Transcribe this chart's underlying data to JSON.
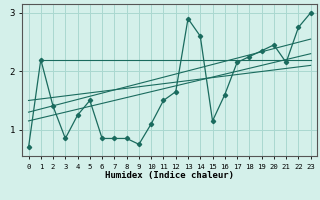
{
  "xlabel": "Humidex (Indice chaleur)",
  "bg_color": "#d4f0ea",
  "line_color": "#1a6b5e",
  "grid_color": "#aad8d0",
  "xlim": [
    -0.5,
    23.5
  ],
  "ylim": [
    0.55,
    3.15
  ],
  "yticks": [
    1,
    2,
    3
  ],
  "xticks": [
    0,
    1,
    2,
    3,
    4,
    5,
    6,
    7,
    8,
    9,
    10,
    11,
    12,
    13,
    14,
    15,
    16,
    17,
    18,
    19,
    20,
    21,
    22,
    23
  ],
  "curve_x": [
    0,
    1,
    2,
    3,
    4,
    5,
    6,
    7,
    8,
    9,
    10,
    11,
    12,
    13,
    14,
    15,
    16,
    17,
    18,
    19,
    20,
    21,
    22,
    23
  ],
  "curve_y": [
    0.7,
    2.2,
    1.4,
    0.85,
    1.25,
    1.5,
    0.85,
    0.85,
    0.85,
    0.75,
    1.1,
    1.5,
    1.65,
    2.9,
    2.6,
    1.15,
    1.6,
    2.15,
    2.25,
    2.35,
    2.45,
    2.15,
    2.75,
    3.0
  ],
  "trend1_x": [
    1,
    23
  ],
  "trend1_y": [
    2.2,
    2.2
  ],
  "trend2_x": [
    0,
    23
  ],
  "trend2_y": [
    1.5,
    2.1
  ],
  "trend3_x": [
    0,
    23
  ],
  "trend3_y": [
    1.3,
    2.55
  ],
  "trend4_x": [
    0,
    23
  ],
  "trend4_y": [
    1.15,
    2.3
  ]
}
